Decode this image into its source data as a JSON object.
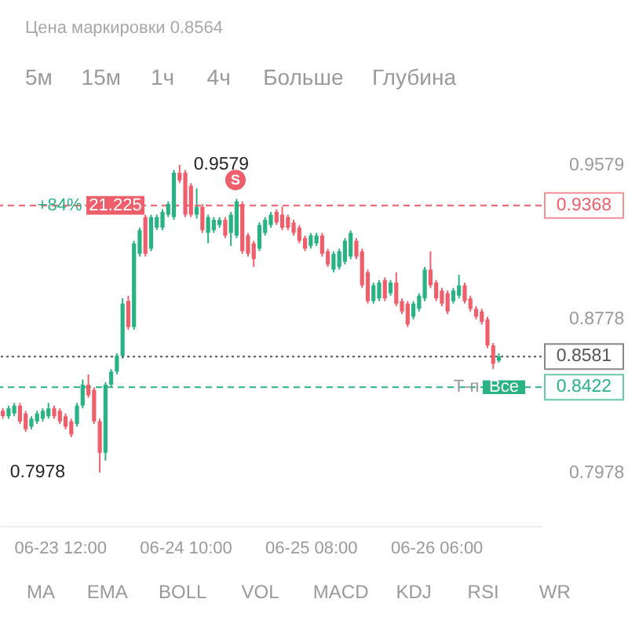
{
  "chart_data": {
    "type": "candlestick",
    "subtitle": "Цена маркировки 0.8564",
    "categories": [
      null,
      null,
      null,
      null,
      null,
      null,
      null,
      null,
      null,
      null,
      "06-23 12:00",
      null,
      null,
      null,
      null,
      null,
      null,
      null,
      null,
      null,
      null,
      null,
      null,
      null,
      null,
      null,
      null,
      null,
      null,
      null,
      null,
      null,
      "06-24 10:00",
      null,
      null,
      null,
      null,
      null,
      null,
      null,
      null,
      null,
      null,
      null,
      null,
      null,
      null,
      null,
      null,
      null,
      null,
      null,
      null,
      null,
      "06-25 08:00",
      null,
      null,
      null,
      null,
      null,
      null,
      null,
      null,
      null,
      null,
      null,
      null,
      null,
      null,
      null,
      null,
      null,
      null,
      null,
      null,
      null,
      "06-26 06:00",
      null,
      null,
      null,
      null,
      null,
      null,
      null,
      null,
      null,
      null,
      null,
      null,
      null,
      null,
      null,
      null,
      null,
      null
    ],
    "ohlc": [
      [
        0.8299,
        0.8312,
        0.8258,
        0.8272
      ],
      [
        0.8271,
        0.8326,
        0.8258,
        0.8312
      ],
      [
        0.8285,
        0.834,
        0.8271,
        0.8326
      ],
      [
        0.8326,
        0.834,
        0.8231,
        0.8244
      ],
      [
        0.8285,
        0.8299,
        0.819,
        0.8203
      ],
      [
        0.8217,
        0.8271,
        0.8203,
        0.8258
      ],
      [
        0.8244,
        0.8299,
        0.8231,
        0.8285
      ],
      [
        0.8258,
        0.8312,
        0.8244,
        0.8299
      ],
      [
        0.8271,
        0.834,
        0.8258,
        0.8312
      ],
      [
        0.8312,
        0.8326,
        0.8258,
        0.8271
      ],
      [
        0.8299,
        0.8312,
        0.8231,
        0.8244
      ],
      [
        0.8271,
        0.8285,
        0.8203,
        0.8217
      ],
      [
        0.8244,
        0.8258,
        0.8162,
        0.8176
      ],
      [
        0.8231,
        0.834,
        0.8217,
        0.8326
      ],
      [
        0.8326,
        0.8462,
        0.8312,
        0.8435
      ],
      [
        0.8435,
        0.8489,
        0.8367,
        0.838
      ],
      [
        0.8408,
        0.8421,
        0.8231,
        0.8244
      ],
      [
        0.8244,
        0.8258,
        0.7978,
        0.8081
      ],
      [
        0.8081,
        0.8448,
        0.804,
        0.8435
      ],
      [
        0.8435,
        0.8516,
        0.8421,
        0.8503
      ],
      [
        0.8503,
        0.8598,
        0.8489,
        0.8585
      ],
      [
        0.8585,
        0.8885,
        0.8571,
        0.8857
      ],
      [
        0.8871,
        0.8898,
        0.8721,
        0.8735
      ],
      [
        0.8735,
        0.9184,
        0.8721,
        0.917
      ],
      [
        0.9116,
        0.9252,
        0.9102,
        0.9239
      ],
      [
        0.9307,
        0.932,
        0.9102,
        0.9116
      ],
      [
        0.9143,
        0.932,
        0.913,
        0.9307
      ],
      [
        0.9252,
        0.932,
        0.9239,
        0.9307
      ],
      [
        0.9252,
        0.9348,
        0.9239,
        0.9334
      ],
      [
        0.932,
        0.9389,
        0.9307,
        0.9375
      ],
      [
        0.9307,
        0.9552,
        0.9293,
        0.9538
      ],
      [
        0.9538,
        0.9579,
        0.9484,
        0.9498
      ],
      [
        0.9538,
        0.9552,
        0.9307,
        0.932
      ],
      [
        0.947,
        0.9484,
        0.9307,
        0.932
      ],
      [
        0.932,
        0.9457,
        0.93,
        0.9361
      ],
      [
        0.9361,
        0.9375,
        0.9225,
        0.9239
      ],
      [
        0.9225,
        0.932,
        0.9171,
        0.9307
      ],
      [
        0.9239,
        0.9307,
        0.9225,
        0.9293
      ],
      [
        0.9266,
        0.9307,
        0.9252,
        0.9293
      ],
      [
        0.9293,
        0.9307,
        0.9198,
        0.9211
      ],
      [
        0.9225,
        0.9334,
        0.9157,
        0.932
      ],
      [
        0.9211,
        0.9402,
        0.9198,
        0.9389
      ],
      [
        0.9375,
        0.9389,
        0.9116,
        0.913
      ],
      [
        0.9211,
        0.9225,
        0.9102,
        0.9116
      ],
      [
        0.9171,
        0.9184,
        0.9048,
        0.9089
      ],
      [
        0.9143,
        0.928,
        0.913,
        0.9266
      ],
      [
        0.9225,
        0.9307,
        0.9211,
        0.9293
      ],
      [
        0.9266,
        0.9334,
        0.9252,
        0.932
      ],
      [
        0.9334,
        0.9348,
        0.9266,
        0.9279
      ],
      [
        0.932,
        0.9361,
        0.9239,
        0.9252
      ],
      [
        0.9307,
        0.932,
        0.9239,
        0.9252
      ],
      [
        0.9279,
        0.9293,
        0.9211,
        0.9225
      ],
      [
        0.9252,
        0.9266,
        0.9171,
        0.9184
      ],
      [
        0.9198,
        0.9211,
        0.913,
        0.9143
      ],
      [
        0.9157,
        0.9225,
        0.9143,
        0.9211
      ],
      [
        0.917,
        0.9225,
        0.9157,
        0.9211
      ],
      [
        0.9211,
        0.9225,
        0.9102,
        0.9116
      ],
      [
        0.9129,
        0.9143,
        0.9048,
        0.9061
      ],
      [
        0.9034,
        0.9129,
        0.902,
        0.9116
      ],
      [
        0.9048,
        0.9143,
        0.9034,
        0.9129
      ],
      [
        0.9075,
        0.9198,
        0.9061,
        0.9184
      ],
      [
        0.9102,
        0.9238,
        0.9088,
        0.9225
      ],
      [
        0.9184,
        0.9198,
        0.9088,
        0.9102
      ],
      [
        0.9129,
        0.9143,
        0.8939,
        0.8952
      ],
      [
        0.902,
        0.9034,
        0.8857,
        0.887
      ],
      [
        0.887,
        0.8966,
        0.8857,
        0.8952
      ],
      [
        0.8884,
        0.8979,
        0.887,
        0.8966
      ],
      [
        0.8979,
        0.8993,
        0.887,
        0.8884
      ],
      [
        0.8911,
        0.8979,
        0.8898,
        0.8966
      ],
      [
        0.8966,
        0.902,
        0.8843,
        0.8857
      ],
      [
        0.887,
        0.8884,
        0.8802,
        0.8816
      ],
      [
        0.8857,
        0.887,
        0.8735,
        0.8748
      ],
      [
        0.8789,
        0.887,
        0.8775,
        0.8857
      ],
      [
        0.883,
        0.8911,
        0.8816,
        0.8898
      ],
      [
        0.8884,
        0.9048,
        0.887,
        0.9034
      ],
      [
        0.9034,
        0.9129,
        0.8939,
        0.8952
      ],
      [
        0.8966,
        0.8979,
        0.887,
        0.8884
      ],
      [
        0.8925,
        0.8939,
        0.8843,
        0.8857
      ],
      [
        0.8911,
        0.8925,
        0.8802,
        0.8816
      ],
      [
        0.887,
        0.8939,
        0.8857,
        0.8925
      ],
      [
        0.8898,
        0.9007,
        0.8884,
        0.8952
      ],
      [
        0.8952,
        0.8966,
        0.8857,
        0.887
      ],
      [
        0.8884,
        0.8898,
        0.8816,
        0.883
      ],
      [
        0.883,
        0.8843,
        0.8775,
        0.8789
      ],
      [
        0.8816,
        0.883,
        0.8748,
        0.8762
      ],
      [
        0.8775,
        0.8789,
        0.8625,
        0.8639
      ],
      [
        0.8639,
        0.8652,
        0.8516,
        0.8544
      ],
      [
        0.856,
        0.8598,
        0.855,
        0.8581
      ],
      null,
      null,
      null,
      null,
      null,
      null,
      null
    ],
    "colors": [
      "#ef5f6b",
      "#2ab382",
      "#2ab382",
      "#ef5f6b",
      "#ef5f6b",
      "#2ab382",
      "#2ab382",
      "#2ab382",
      "#2ab382",
      "#ef5f6b",
      "#ef5f6b",
      "#ef5f6b",
      "#ef5f6b",
      "#2ab382",
      "#2ab382",
      "#ef5f6b",
      "#ef5f6b",
      "#ef5f6b",
      "#2ab382",
      "#2ab382",
      "#2ab382",
      "#2ab382",
      "#ef5f6b",
      "#2ab382",
      "#2ab382",
      "#ef5f6b",
      "#2ab382",
      "#2ab382",
      "#2ab382",
      "#2ab382",
      "#2ab382",
      "#ef5f6b",
      "#ef5f6b",
      "#ef5f6b",
      "#2ab382",
      "#ef5f6b",
      "#2ab382",
      "#2ab382",
      "#2ab382",
      "#ef5f6b",
      "#2ab382",
      "#2ab382",
      "#ef5f6b",
      "#ef5f6b",
      "#ef5f6b",
      "#2ab382",
      "#2ab382",
      "#2ab382",
      "#ef5f6b",
      "#ef5f6b",
      "#ef5f6b",
      "#ef5f6b",
      "#ef5f6b",
      "#ef5f6b",
      "#2ab382",
      "#2ab382",
      "#ef5f6b",
      "#ef5f6b",
      "#2ab382",
      "#2ab382",
      "#2ab382",
      "#2ab382",
      "#ef5f6b",
      "#ef5f6b",
      "#ef5f6b",
      "#2ab382",
      "#2ab382",
      "#ef5f6b",
      "#2ab382",
      "#ef5f6b",
      "#ef5f6b",
      "#ef5f6b",
      "#2ab382",
      "#2ab382",
      "#2ab382",
      "#ef5f6b",
      "#ef5f6b",
      "#ef5f6b",
      "#ef5f6b",
      "#2ab382",
      "#2ab382",
      "#ef5f6b",
      "#ef5f6b",
      "#ef5f6b",
      "#ef5f6b",
      "#ef5f6b",
      "#ef5f6b",
      "#2ab382",
      null,
      null,
      null,
      null,
      null,
      null,
      null
    ],
    "ylim": [
      0.77,
      0.9579
    ],
    "yticks": [
      0.9579,
      0.8778,
      0.7978
    ],
    "ref_lines": [
      {
        "axis": "y",
        "value": 0.9368,
        "label": "0.9368",
        "color": "#ef5f6b",
        "line_style": "dashed"
      },
      {
        "axis": "y",
        "value": 0.8581,
        "label": "0.8581",
        "color": "#555555",
        "line_style": "dotted"
      },
      {
        "axis": "y",
        "value": 0.8422,
        "label": "0.8422",
        "color": "#2ab382",
        "line_style": "dashed"
      }
    ],
    "annotations": [
      {
        "text": "+84%",
        "y": 0.9368
      },
      {
        "text": "21.225",
        "y": 0.9368
      },
      {
        "text": "S",
        "y": 0.95
      },
      {
        "text": "Т-п",
        "y": 0.8422
      },
      {
        "text": "Все",
        "y": 0.8422
      },
      "0.9579",
      "0.7978",
      "5м",
      "15м",
      "1ч",
      "4ч",
      "Больше",
      "Глубина",
      "MA",
      "EMA",
      "BOLL",
      "VOL",
      "MACD",
      "KDJ",
      "RSI",
      "WR"
    ]
  }
}
